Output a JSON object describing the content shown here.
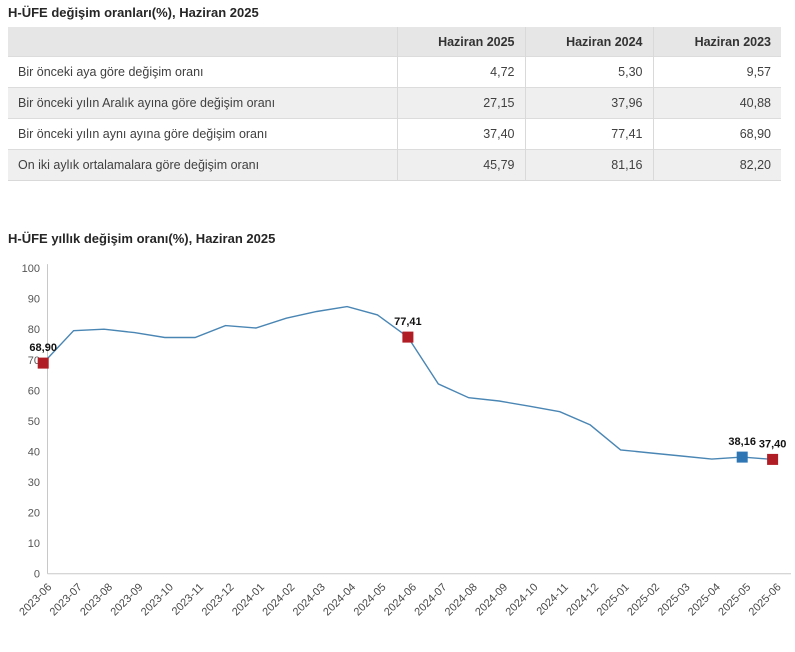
{
  "table_section": {
    "title": "H-ÜFE değişim oranları(%), Haziran 2025",
    "columns": [
      "Haziran 2025",
      "Haziran 2024",
      "Haziran 2023"
    ],
    "rows": [
      {
        "label": "Bir önceki aya göre değişim oranı",
        "values": [
          "4,72",
          "5,30",
          "9,57"
        ]
      },
      {
        "label": "Bir önceki yılın Aralık ayına göre değişim oranı",
        "values": [
          "27,15",
          "37,96",
          "40,88"
        ]
      },
      {
        "label": "Bir önceki yılın aynı ayına göre değişim oranı",
        "values": [
          "37,40",
          "77,41",
          "68,90"
        ]
      },
      {
        "label": "On iki aylık ortalamalara göre değişim oranı",
        "values": [
          "45,79",
          "81,16",
          "82,20"
        ]
      }
    ]
  },
  "chart_section": {
    "title": "H-ÜFE yıllık değişim oranı(%), Haziran 2025"
  },
  "chart_data": {
    "type": "line",
    "title": "H-ÜFE yıllık değişim oranı(%), Haziran 2025",
    "x": [
      "2023-06",
      "2023-07",
      "2023-08",
      "2023-09",
      "2023-10",
      "2023-11",
      "2023-12",
      "2024-01",
      "2024-02",
      "2024-03",
      "2024-04",
      "2024-05",
      "2024-06",
      "2024-07",
      "2024-08",
      "2024-09",
      "2024-10",
      "2024-11",
      "2024-12",
      "2025-01",
      "2025-02",
      "2025-03",
      "2025-04",
      "2025-05",
      "2025-06"
    ],
    "values": [
      68.9,
      79.5,
      80.0,
      78.9,
      77.3,
      77.3,
      81.2,
      80.4,
      83.6,
      85.8,
      87.4,
      84.7,
      77.41,
      62.1,
      57.6,
      56.5,
      54.8,
      53.0,
      48.7,
      40.5,
      39.5,
      38.5,
      37.5,
      38.16,
      37.4
    ],
    "ylim": [
      0,
      100
    ],
    "ytick_step": 10,
    "grid": false,
    "legend": "none",
    "line_color": "#4a86b4",
    "axis_color": "#c8c8c8",
    "tick_label_color": "#555555",
    "annotation_label_color": "#111111",
    "annotated_points": [
      {
        "x": "2023-06",
        "label": "68,90",
        "marker": "square",
        "color": "#b01d24"
      },
      {
        "x": "2024-06",
        "label": "77,41",
        "marker": "square",
        "color": "#b01d24"
      },
      {
        "x": "2025-05",
        "label": "38,16",
        "marker": "square",
        "color": "#2e76b4"
      },
      {
        "x": "2025-06",
        "label": "37,40",
        "marker": "square",
        "color": "#b01d24"
      }
    ]
  }
}
